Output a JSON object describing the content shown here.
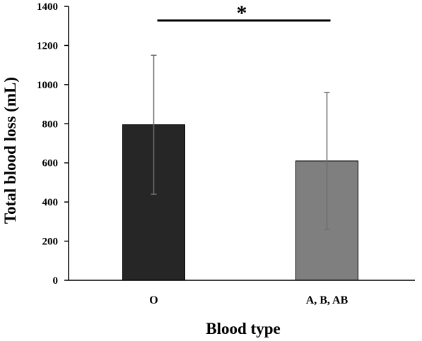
{
  "chart_data": {
    "type": "bar",
    "categories": [
      "O",
      "A, B, AB"
    ],
    "values": [
      795,
      610
    ],
    "error": [
      355,
      350
    ],
    "colors": [
      "#262626",
      "#7f7f7f"
    ],
    "ylim": [
      0,
      1400
    ],
    "yticks": [
      "0",
      "200",
      "400",
      "600",
      "800",
      "1000",
      "1200",
      "1400"
    ],
    "ytick_values": [
      0,
      200,
      400,
      600,
      800,
      1000,
      1200,
      1400
    ],
    "xlabel": "Blood type",
    "ylabel": "Total blood loss (mL)",
    "significance": {
      "from": 0,
      "to": 1,
      "label": "*"
    },
    "grid": false,
    "legend": "none"
  }
}
